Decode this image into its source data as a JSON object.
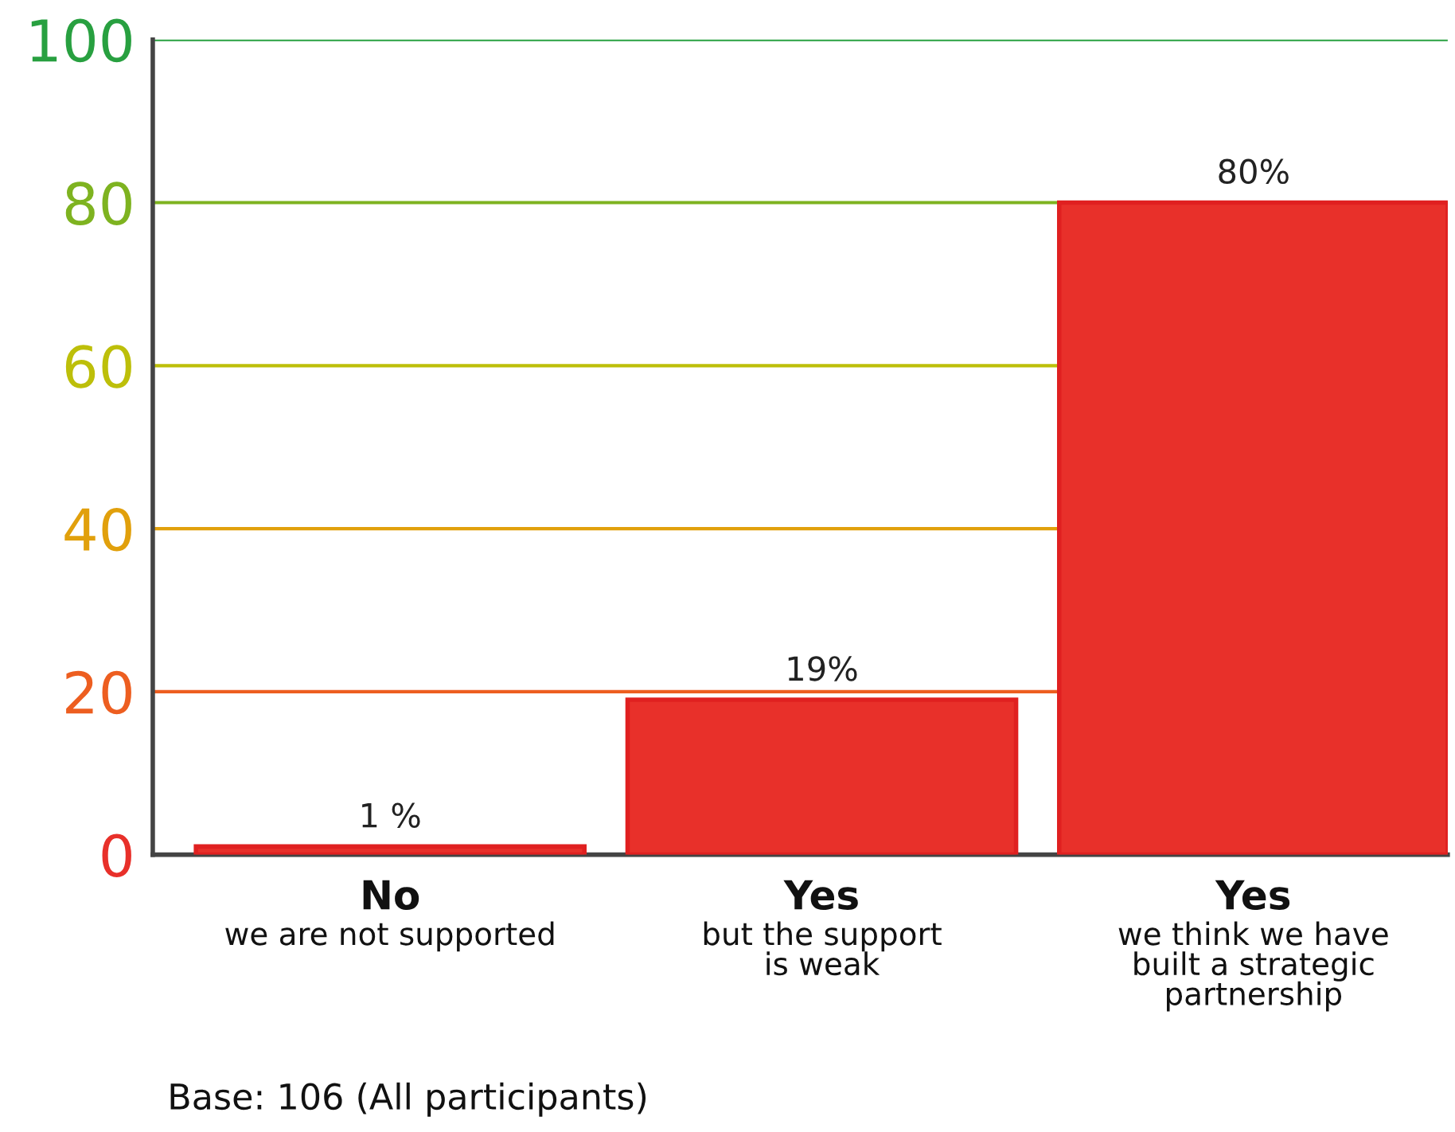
{
  "chart_data": {
    "type": "bar",
    "categories": [
      "No\nwe are not supported",
      "Yes\nbut the support\nis weak",
      "Yes\nwe think we have\nbuilt a strategic\npartnership"
    ],
    "values": [
      1,
      19,
      80
    ],
    "value_labels": [
      "1 %",
      "19%",
      "80%"
    ],
    "color": "#e8302a",
    "ylim": [
      0,
      100
    ],
    "yticks": [
      0,
      20,
      40,
      60,
      80,
      100
    ],
    "ref_lines": [
      {
        "axis": "y",
        "value": 20,
        "color": "#ed5e20"
      },
      {
        "axis": "y",
        "value": 40,
        "color": "#e1a00c"
      },
      {
        "axis": "y",
        "value": 60,
        "color": "#bdbf0a"
      },
      {
        "axis": "y",
        "value": 80,
        "color": "#7eb320"
      },
      {
        "axis": "y",
        "value": 100,
        "color": "#28a040"
      }
    ],
    "annotations": [
      "Base: 106 (All participants)"
    ]
  }
}
